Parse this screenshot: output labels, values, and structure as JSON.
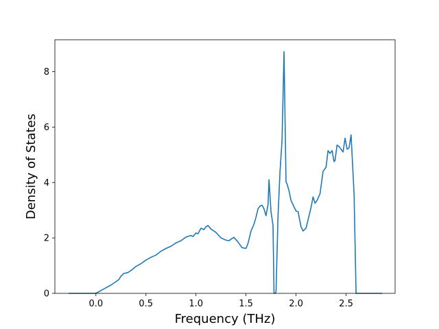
{
  "colors": {
    "series": "#1f77b4",
    "axis": "#000000",
    "background": "#ffffff"
  },
  "chart_data": {
    "type": "line",
    "title": "",
    "xlabel": "Frequency (THz)",
    "ylabel": "Density of States",
    "xlim": [
      -0.41,
      2.99
    ],
    "ylim": [
      0,
      9.15
    ],
    "xticks": [
      0.0,
      0.5,
      1.0,
      1.5,
      2.0,
      2.5
    ],
    "xtick_labels": [
      "0.0",
      "0.5",
      "1.0",
      "1.5",
      "2.0",
      "2.5"
    ],
    "yticks": [
      0,
      2,
      4,
      6,
      8
    ],
    "ytick_labels": [
      "0",
      "2",
      "4",
      "6",
      "8"
    ],
    "grid": false,
    "legend": "none",
    "series": [
      {
        "x": [
          -0.27,
          0.0,
          0.05,
          0.1,
          0.15,
          0.2,
          0.23,
          0.25,
          0.28,
          0.32,
          0.36,
          0.4,
          0.45,
          0.5,
          0.55,
          0.6,
          0.65,
          0.7,
          0.75,
          0.8,
          0.85,
          0.9,
          0.95,
          0.97,
          1.0,
          1.02,
          1.05,
          1.08,
          1.1,
          1.12,
          1.15,
          1.2,
          1.25,
          1.3,
          1.33,
          1.36,
          1.38,
          1.42,
          1.46,
          1.5,
          1.52,
          1.55,
          1.58,
          1.6,
          1.62,
          1.64,
          1.66,
          1.68,
          1.7,
          1.72,
          1.73,
          1.75,
          1.77,
          1.78,
          1.79,
          1.8,
          1.82,
          1.84,
          1.86,
          1.88,
          1.9,
          1.91,
          1.93,
          1.95,
          1.97,
          2.0,
          2.02,
          2.05,
          2.07,
          2.1,
          2.12,
          2.15,
          2.17,
          2.19,
          2.21,
          2.24,
          2.27,
          2.3,
          2.32,
          2.34,
          2.36,
          2.38,
          2.39,
          2.41,
          2.43,
          2.46,
          2.47,
          2.49,
          2.51,
          2.53,
          2.55,
          2.58,
          2.6,
          2.62,
          2.65,
          2.7,
          2.75,
          2.8,
          2.86
        ],
        "y": [
          0,
          0,
          0.1,
          0.2,
          0.3,
          0.42,
          0.5,
          0.62,
          0.72,
          0.75,
          0.85,
          0.97,
          1.07,
          1.2,
          1.3,
          1.38,
          1.52,
          1.62,
          1.7,
          1.82,
          1.9,
          2.03,
          2.09,
          2.05,
          2.18,
          2.15,
          2.35,
          2.3,
          2.4,
          2.45,
          2.32,
          2.2,
          2.0,
          1.92,
          1.9,
          1.98,
          2.02,
          1.85,
          1.65,
          1.62,
          1.8,
          2.25,
          2.5,
          2.75,
          3.05,
          3.15,
          3.18,
          3.05,
          2.8,
          3.2,
          4.1,
          2.95,
          2.45,
          0.0,
          0.0,
          0.05,
          2.8,
          4.4,
          5.5,
          8.72,
          4.02,
          3.95,
          3.7,
          3.35,
          3.2,
          2.97,
          2.95,
          2.4,
          2.25,
          2.35,
          2.65,
          3.1,
          3.48,
          3.25,
          3.35,
          3.6,
          4.4,
          4.55,
          5.15,
          5.05,
          5.15,
          4.75,
          4.8,
          5.35,
          5.3,
          5.15,
          5.1,
          5.6,
          5.2,
          5.25,
          5.72,
          3.6,
          0.0,
          0.0,
          0.0,
          0.0,
          0.0,
          0.0,
          0.0
        ]
      }
    ]
  }
}
